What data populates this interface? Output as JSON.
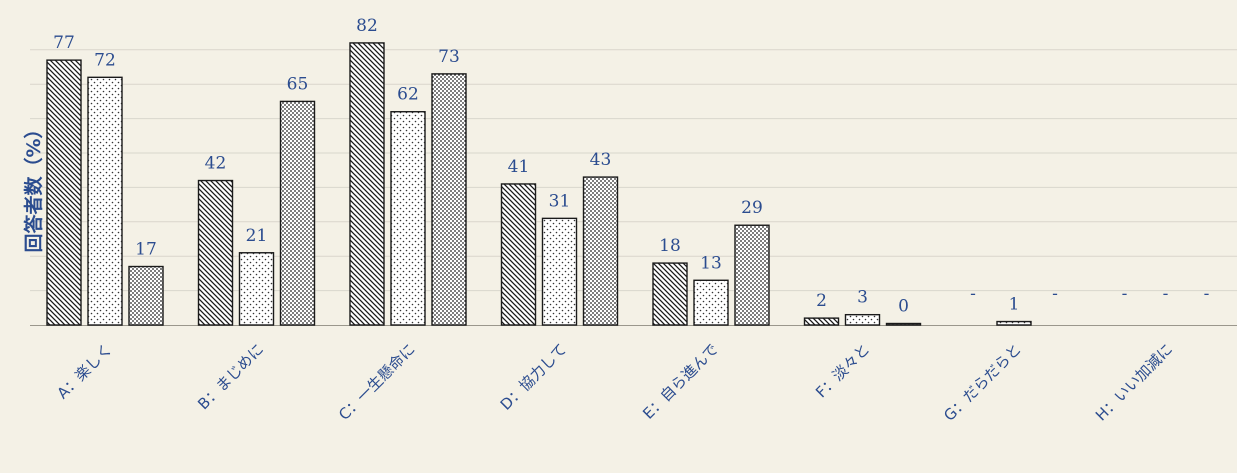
{
  "chart_data": {
    "type": "bar",
    "ylabel": "回答者数（%）",
    "categories": [
      "A：楽しく",
      "B：まじめに",
      "C：一生懸命に",
      "D：協力して",
      "E：自ら進んで",
      "F：淡々と",
      "G：だらだらと",
      "H：いい加減に"
    ],
    "series": [
      {
        "pattern": "diagonal-hatch",
        "values": [
          77,
          42,
          82,
          41,
          18,
          2,
          null,
          null
        ],
        "labels": [
          "77",
          "42",
          "82",
          "41",
          "18",
          "2",
          "-",
          "-"
        ]
      },
      {
        "pattern": "light-dots",
        "values": [
          72,
          21,
          62,
          31,
          13,
          3,
          1,
          null
        ],
        "labels": [
          "72",
          "21",
          "62",
          "31",
          "13",
          "3",
          "1",
          "-"
        ]
      },
      {
        "pattern": "dense-dots",
        "values": [
          17,
          65,
          73,
          43,
          29,
          0,
          null,
          null
        ],
        "labels": [
          "17",
          "65",
          "73",
          "43",
          "29",
          "0",
          "-",
          "-"
        ]
      }
    ],
    "ylim": [
      0,
      85
    ],
    "grid": true,
    "colors": {
      "text": "#2b4c8f",
      "bar_stroke": "#1a1a1a",
      "grid": "#d9d6cc",
      "background": "#f4f1e6"
    }
  }
}
